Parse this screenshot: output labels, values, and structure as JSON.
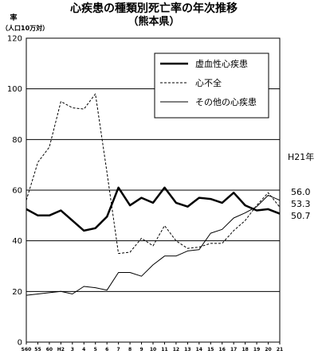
{
  "chart_data": {
    "type": "line",
    "title": "心疾患の種類別死亡率の年次推移",
    "subtitle": "（熊本県）",
    "ylabel": "率",
    "yunit": "（人口10万対）",
    "ylim": [
      0,
      120
    ],
    "yticks": [
      "0",
      "20",
      "40",
      "60",
      "80",
      "100",
      "120"
    ],
    "categories": [
      "S60",
      "",
      "",
      "",
      "H2",
      "",
      "",
      "",
      "",
      "",
      "",
      "",
      "",
      "",
      "",
      "",
      "",
      "",
      "",
      "",
      "",
      "",
      ""
    ],
    "xtick_labels": [
      "S60",
      "55",
      "60",
      "H2",
      "3",
      "4",
      "5",
      "6",
      "7",
      "8",
      "9",
      "10",
      "11",
      "12",
      "13",
      "14",
      "15",
      "16",
      "17",
      "18",
      "19",
      "20",
      "21"
    ],
    "grid": "horizontal",
    "legend_position": "top-right",
    "series": [
      {
        "name": "虚血性心疾患",
        "style": "thick-solid",
        "values": [
          52.5,
          50,
          50,
          52,
          48,
          44,
          45,
          49.5,
          61,
          54,
          57,
          55,
          61,
          55,
          53.5,
          57,
          56.5,
          55,
          59,
          54,
          52,
          52.5,
          50.7
        ]
      },
      {
        "name": "心不全",
        "style": "dashed",
        "values": [
          56,
          71,
          77,
          95,
          92.5,
          92,
          98,
          67,
          35,
          35.5,
          41,
          38,
          46,
          40,
          37,
          37.5,
          39,
          39,
          44,
          48,
          54,
          59,
          53.3
        ]
      },
      {
        "name": "その他の心疾患",
        "style": "thin-solid",
        "values": [
          18.5,
          19,
          19.5,
          20,
          19,
          22,
          21.5,
          20.5,
          27.5,
          27.5,
          26,
          30.5,
          34,
          34,
          36,
          36.5,
          43,
          44.5,
          49,
          51,
          53.5,
          58,
          56.0
        ]
      }
    ],
    "end_label_header": "H21年",
    "end_labels": [
      "56.0",
      "53.3",
      "50.7"
    ],
    "colors": {
      "line": "#000000",
      "background": "#ffffff",
      "grid": "#000000"
    }
  }
}
